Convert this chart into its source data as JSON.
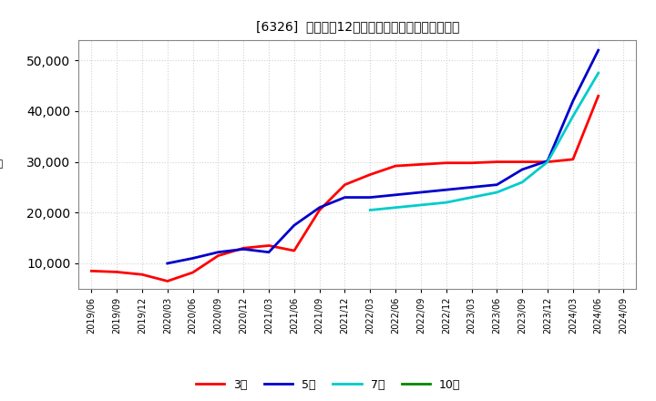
{
  "title": "[6326]  経常利益12か月移動合計の標準偏差の推移",
  "ylim": [
    5000,
    54000
  ],
  "yticks": [
    10000,
    20000,
    30000,
    40000,
    50000
  ],
  "background_color": "#ffffff",
  "plot_bg_color": "#ffffff",
  "grid_color": "#cccccc",
  "series": {
    "3年": {
      "color": "#ff0000",
      "dates": [
        "2019/06",
        "2019/09",
        "2019/12",
        "2020/03",
        "2020/06",
        "2020/09",
        "2020/12",
        "2021/03",
        "2021/06",
        "2021/09",
        "2021/12",
        "2022/03",
        "2022/06",
        "2022/09",
        "2022/12",
        "2023/03",
        "2023/06",
        "2023/09",
        "2023/12",
        "2024/03",
        "2024/06"
      ],
      "values": [
        8500,
        8300,
        7800,
        6500,
        8200,
        11500,
        13000,
        13500,
        12500,
        20500,
        25500,
        27500,
        29200,
        29500,
        29800,
        29800,
        30000,
        30000,
        30000,
        30500,
        43000
      ]
    },
    "5年": {
      "color": "#0000cc",
      "dates": [
        "2020/03",
        "2020/06",
        "2020/09",
        "2020/12",
        "2021/03",
        "2021/06",
        "2021/09",
        "2021/12",
        "2022/03",
        "2022/06",
        "2022/09",
        "2022/12",
        "2023/03",
        "2023/06",
        "2023/09",
        "2023/12",
        "2024/03",
        "2024/06"
      ],
      "values": [
        10000,
        11000,
        12200,
        12800,
        12200,
        17500,
        21000,
        23000,
        23000,
        23500,
        24000,
        24500,
        25000,
        25500,
        28500,
        30200,
        42000,
        52000
      ]
    },
    "7年": {
      "color": "#00cccc",
      "dates": [
        "2022/03",
        "2022/06",
        "2022/09",
        "2022/12",
        "2023/03",
        "2023/06",
        "2023/09",
        "2023/12",
        "2024/03",
        "2024/06"
      ],
      "values": [
        20500,
        21000,
        21500,
        22000,
        23000,
        24000,
        26000,
        30000,
        39000,
        47500
      ]
    },
    "10年": {
      "color": "#008800",
      "dates": [],
      "values": []
    }
  },
  "xticks": [
    "2019/06",
    "2019/09",
    "2019/12",
    "2020/03",
    "2020/06",
    "2020/09",
    "2020/12",
    "2021/03",
    "2021/06",
    "2021/09",
    "2021/12",
    "2022/03",
    "2022/06",
    "2022/09",
    "2022/12",
    "2023/03",
    "2023/06",
    "2023/09",
    "2023/12",
    "2024/03",
    "2024/06",
    "2024/09"
  ],
  "legend_order": [
    "3年",
    "5年",
    "7年",
    "10年"
  ]
}
